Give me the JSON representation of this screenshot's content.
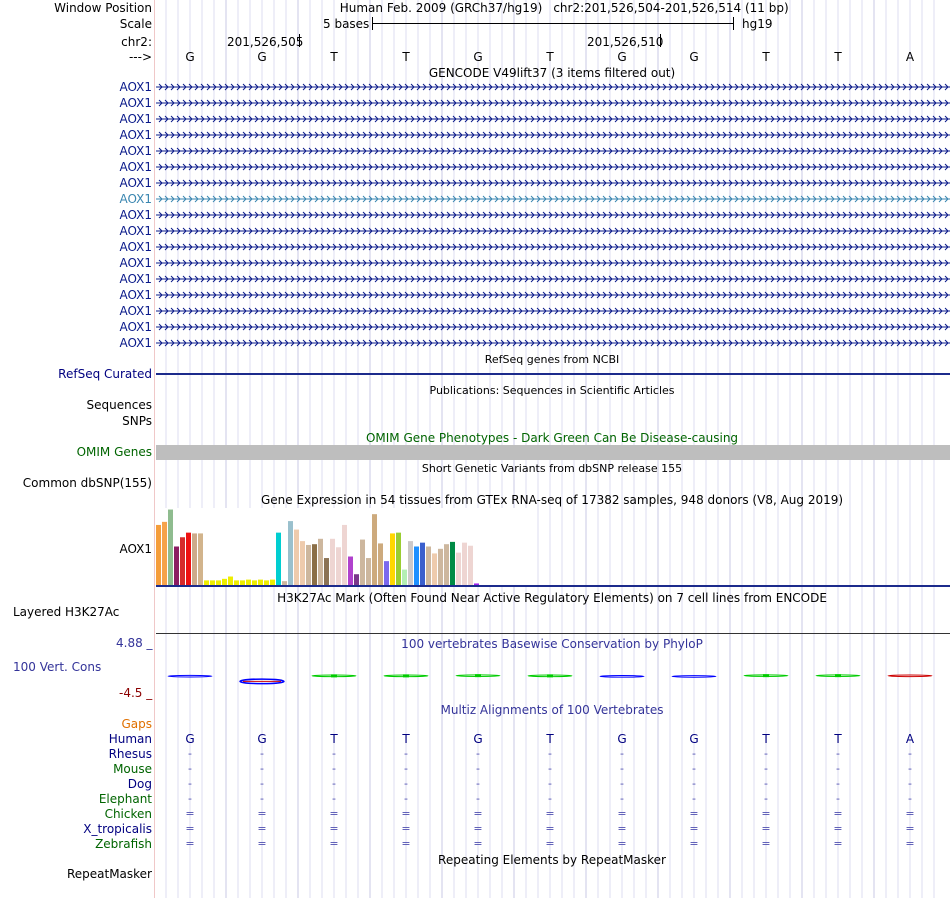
{
  "header": {
    "window_position_label": "Window Position",
    "assembly_text": "Human Feb. 2009 (GRCh37/hg19)",
    "position_text": "chr2:201,526,504-201,526,514 (11 bp)",
    "scale_label": "Scale",
    "scale_text": "5 bases",
    "scale_db": "hg19",
    "chrom_label": "chr2:",
    "coord_1": "201,526,505",
    "coord_2": "201,526,510",
    "strand_label": "--->"
  },
  "bases": [
    "G",
    "G",
    "T",
    "T",
    "G",
    "T",
    "G",
    "G",
    "T",
    "T",
    "A"
  ],
  "gencode": {
    "title": "GENCODE V49lift37 (3 items filtered out)",
    "items": [
      "AOX1",
      "AOX1",
      "AOX1",
      "AOX1",
      "AOX1",
      "AOX1",
      "AOX1",
      "AOX1",
      "AOX1",
      "AOX1",
      "AOX1",
      "AOX1",
      "AOX1",
      "AOX1",
      "AOX1",
      "AOX1",
      "AOX1"
    ],
    "highlight_index": 7,
    "color": "#0a1a8a",
    "highlight_color": "#3a86b0"
  },
  "refseq": {
    "title": "RefSeq genes from NCBI",
    "label": "RefSeq Curated"
  },
  "publications": {
    "title": "Publications: Sequences in Scientific Articles",
    "label_1": "Sequences",
    "label_2": "SNPs"
  },
  "omim": {
    "title": "OMIM Gene Phenotypes - Dark Green Can Be Disease-causing",
    "label": "OMIM Genes",
    "bar_color": "#bebebe"
  },
  "dbsnp": {
    "title": "Short Genetic Variants from dbSNP release 155",
    "label": "Common dbSNP(155)"
  },
  "gtex": {
    "title": "Gene Expression in 54 tissues from GTEx RNA-seq of 17382 samples, 948 donors (V8, Aug 2019)",
    "label": "AOX1",
    "bar_values": [
      0.78,
      0.82,
      0.98,
      0.5,
      0.62,
      0.68,
      0.67,
      0.67,
      0.06,
      0.06,
      0.06,
      0.08,
      0.11,
      0.06,
      0.06,
      0.07,
      0.06,
      0.07,
      0.06,
      0.07,
      0.68,
      0.05,
      0.83,
      0.72,
      0.57,
      0.52,
      0.53,
      0.6,
      0.35,
      0.6,
      0.49,
      0.78,
      0.37,
      0.14,
      0.59,
      0.35,
      0.92,
      0.54,
      0.31,
      0.67,
      0.68,
      0.2,
      0.57,
      0.5,
      0.55,
      0.5,
      0.41,
      0.47,
      0.53,
      0.56,
      0.42,
      0.55,
      0.51,
      0.02
    ],
    "bar_colors": [
      "#f59d3a",
      "#f6a34b",
      "#8fbc8f",
      "#8b1c62",
      "#d62b2b",
      "#ee1111",
      "#cdaa8a",
      "#d2b48c",
      "#eeee00",
      "#eeee00",
      "#eeee00",
      "#eeee00",
      "#eeee00",
      "#eeee00",
      "#eeee00",
      "#eeee00",
      "#eeee00",
      "#eeee00",
      "#eeee00",
      "#eeee00",
      "#00ced1",
      "#cdb79e",
      "#9ac0cd",
      "#eecbad",
      "#eecbad",
      "#cdb79e",
      "#8b6f47",
      "#cdb79e",
      "#8b7355",
      "#eed5d2",
      "#eed5d2",
      "#eed5d2",
      "#b041cd",
      "#7a378b",
      "#cdb79e",
      "#cdb79e",
      "#cdaa7d",
      "#cdaa7d",
      "#7b68ee",
      "#ffd700",
      "#9acd32",
      "#b4eeb4",
      "#cdc9c9",
      "#1e90ff",
      "#3a5fcd",
      "#cdb79e",
      "#eecbad",
      "#cdb79e",
      "#cdb79e",
      "#008b45",
      "#eed5d2",
      "#eed5d2",
      "#eed5d2",
      "#a020f0"
    ]
  },
  "h3k27ac": {
    "title": "H3K27Ac Mark (Often Found Near Active Regulatory Elements) on 7 cell lines from ENCODE",
    "label": "Layered H3K27Ac"
  },
  "conservation": {
    "title": "100 vertebrates Basewise Conservation by PhyloP",
    "label": "100 Vert. Cons",
    "max_label": "4.88 _",
    "min_label": "-4.5 _",
    "ylim": [
      -4.5,
      4.88
    ],
    "values": [
      -0.2,
      -1.9,
      0.2,
      0.2,
      0.5,
      0.2,
      -0.5,
      -0.6,
      0.5,
      0.5,
      0.3
    ],
    "colors": [
      "#0000ff",
      "#0000ff",
      "#00cc00",
      "#00cc00",
      "#00cc00",
      "#00cc00",
      "#0000ff",
      "#0000ff",
      "#00cc00",
      "#00cc00",
      "#cc0000"
    ]
  },
  "multiz": {
    "title": "Multiz Alignments of 100 Vertebrates",
    "gaps_label": "Gaps",
    "species": [
      {
        "name": "Human",
        "color": "#000080"
      },
      {
        "name": "Rhesus",
        "color": "#000080"
      },
      {
        "name": "Mouse",
        "color": "#006400"
      },
      {
        "name": "Dog",
        "color": "#000080"
      },
      {
        "name": "Elephant",
        "color": "#006400"
      },
      {
        "name": "Chicken",
        "color": "#006400"
      },
      {
        "name": "X_tropicalis",
        "color": "#000080"
      },
      {
        "name": "Zebrafish",
        "color": "#006400"
      }
    ],
    "row_symbols": [
      "",
      "-",
      "-",
      "-",
      "-",
      "=",
      "=",
      "="
    ]
  },
  "repeatmasker": {
    "title": "Repeating Elements by RepeatMasker",
    "label": "RepeatMasker"
  }
}
